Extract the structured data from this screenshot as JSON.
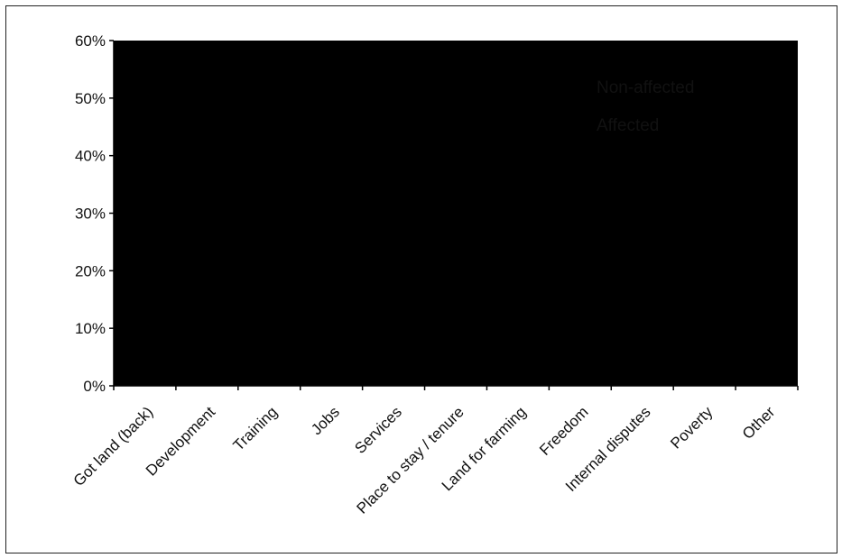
{
  "chart_data": {
    "type": "bar",
    "categories": [
      "Got land (back)",
      "Development",
      "Training",
      "Jobs",
      "Services",
      "Place to stay / tenure",
      "Land for farming",
      "Freedom",
      "Internal disputes",
      "Poverty",
      "Other"
    ],
    "series": [
      {
        "name": "Non-affected",
        "values": [
          null,
          null,
          null,
          null,
          null,
          null,
          null,
          null,
          null,
          null,
          null
        ]
      },
      {
        "name": "Affected",
        "values": [
          null,
          null,
          null,
          null,
          null,
          null,
          null,
          null,
          null,
          null,
          null
        ]
      }
    ],
    "y_ticks": [
      "0%",
      "10%",
      "20%",
      "30%",
      "40%",
      "50%",
      "60%"
    ],
    "ylim": [
      0,
      60
    ],
    "legend_labels": [
      "Non-affected",
      "Affected"
    ],
    "legend_position": "top-right",
    "grid": false,
    "colors": {
      "plot_background": "#000000",
      "text": "#111111",
      "frame": "#222222"
    }
  }
}
